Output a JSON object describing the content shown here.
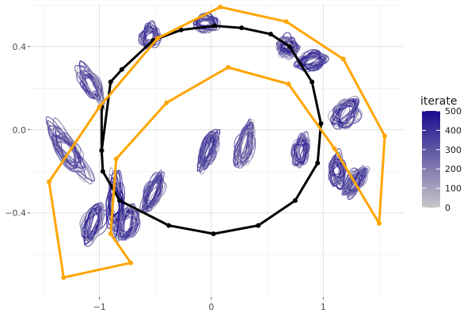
{
  "chart_data": {
    "type": "line",
    "title": "",
    "xlabel": "",
    "ylabel": "",
    "xlim": [
      -1.62,
      1.72
    ],
    "ylim": [
      -0.805,
      0.605
    ],
    "x_ticks": [
      -1,
      0,
      1
    ],
    "x_tick_labels": [
      "−1",
      "0",
      "1"
    ],
    "y_ticks": [
      -0.4,
      0.0,
      0.4
    ],
    "y_tick_labels": [
      "−0.4",
      "0.0",
      "0.4"
    ],
    "grid": true,
    "legend": {
      "title": "iterate",
      "position": "right",
      "type": "colorbar",
      "range": [
        0,
        500
      ],
      "ticks": [
        0,
        100,
        200,
        300,
        400,
        500
      ],
      "tick_labels": [
        "0",
        "100",
        "200",
        "300",
        "400",
        "500"
      ],
      "low_color": "#c8c8c8",
      "high_color": "#1a0a8c"
    },
    "colors": {
      "target_path": "#000000",
      "comparison_path": "#ffa500",
      "iterate_low": "#c8c8c8",
      "iterate_high": "#1a0a8c"
    },
    "series": [
      {
        "x": [
          -0.98,
          -0.98,
          -0.9,
          -0.8,
          -0.52,
          -0.27,
          0.03,
          0.27,
          0.53,
          0.7,
          0.9,
          0.98,
          0.95,
          0.75,
          0.42,
          0.02,
          -0.38,
          -0.82,
          -0.97,
          -0.98
        ],
        "y": [
          0.11,
          -0.1,
          0.23,
          0.29,
          0.43,
          0.48,
          0.5,
          0.49,
          0.46,
          0.4,
          0.23,
          0.03,
          -0.16,
          -0.34,
          -0.46,
          -0.5,
          -0.46,
          -0.34,
          -0.2,
          -0.1
        ]
      },
      {
        "x": [
          -1.45,
          -1.0,
          -0.48,
          0.08,
          0.67,
          1.18,
          1.55,
          1.5,
          1.1,
          0.69,
          0.15,
          -0.4,
          -0.85,
          -0.9,
          -0.72,
          -1.32,
          -1.45
        ],
        "y": [
          -0.25,
          0.11,
          0.44,
          0.59,
          0.52,
          0.34,
          -0.03,
          -0.45,
          -0.09,
          0.22,
          0.3,
          0.13,
          -0.14,
          -0.5,
          -0.64,
          -0.71,
          -0.25
        ]
      }
    ],
    "iterate_shapes": [
      {
        "cx": -1.28,
        "cy": -0.1,
        "w": 0.16,
        "h": 0.3,
        "tilt": -35
      },
      {
        "cx": -1.08,
        "cy": 0.22,
        "w": 0.14,
        "h": 0.2,
        "tilt": -30
      },
      {
        "cx": -0.55,
        "cy": 0.45,
        "w": 0.16,
        "h": 0.1,
        "tilt": 10
      },
      {
        "cx": -0.05,
        "cy": 0.51,
        "w": 0.2,
        "h": 0.07,
        "tilt": 0
      },
      {
        "cx": 0.68,
        "cy": 0.4,
        "w": 0.18,
        "h": 0.08,
        "tilt": 5
      },
      {
        "cx": 0.9,
        "cy": 0.33,
        "w": 0.28,
        "h": 0.07,
        "tilt": -15
      },
      {
        "cx": 1.2,
        "cy": 0.08,
        "w": 0.3,
        "h": 0.1,
        "tilt": -50
      },
      {
        "cx": 1.12,
        "cy": -0.2,
        "w": 0.14,
        "h": 0.14,
        "tilt": 0
      },
      {
        "cx": 1.28,
        "cy": -0.25,
        "w": 0.3,
        "h": 0.06,
        "tilt": -55
      },
      {
        "cx": -1.05,
        "cy": -0.45,
        "w": 0.36,
        "h": 0.08,
        "tilt": -70
      },
      {
        "cx": -0.75,
        "cy": -0.45,
        "w": 0.3,
        "h": 0.08,
        "tilt": -70
      },
      {
        "cx": -0.52,
        "cy": -0.3,
        "w": 0.35,
        "h": 0.07,
        "tilt": -65
      },
      {
        "cx": -0.03,
        "cy": -0.1,
        "w": 0.36,
        "h": 0.06,
        "tilt": -72
      },
      {
        "cx": 0.3,
        "cy": -0.07,
        "w": 0.4,
        "h": 0.06,
        "tilt": -75
      },
      {
        "cx": 0.8,
        "cy": -0.1,
        "w": 0.28,
        "h": 0.06,
        "tilt": -80
      },
      {
        "cx": -0.85,
        "cy": -0.35,
        "w": 0.14,
        "h": 0.3,
        "tilt": 0
      }
    ]
  }
}
